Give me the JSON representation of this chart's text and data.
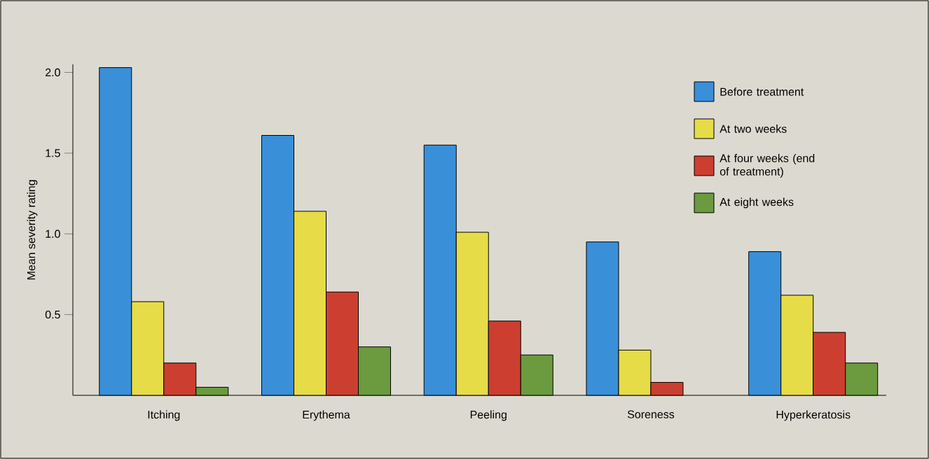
{
  "chart_data": {
    "type": "bar",
    "ylabel": "Mean severity rating",
    "categories": [
      "Itching",
      "Erythema",
      "Peeling",
      "Soreness",
      "Hyperkeratosis"
    ],
    "series": [
      {
        "name": "Before treatment",
        "color": "#3a8fd9",
        "values": [
          2.03,
          1.61,
          1.55,
          0.95,
          0.89
        ]
      },
      {
        "name": "At two weeks",
        "color": "#e6dc48",
        "values": [
          0.58,
          1.14,
          1.01,
          0.28,
          0.62
        ]
      },
      {
        "name": "At four weeks (end of treatment)",
        "color": "#cc3f30",
        "values": [
          0.2,
          0.64,
          0.46,
          0.08,
          0.39
        ]
      },
      {
        "name": "At eight weeks",
        "color": "#6b9a3f",
        "values": [
          0.05,
          0.3,
          0.25,
          null,
          0.2
        ]
      }
    ],
    "ylim": [
      0,
      2.05
    ],
    "yticks": [
      {
        "value": 0.5,
        "label": "0.5"
      },
      {
        "value": 1,
        "label": "1.0"
      },
      {
        "value": 1.5,
        "label": "1.5"
      },
      {
        "value": 2,
        "label": "2.0"
      }
    ],
    "legend": "top right"
  }
}
